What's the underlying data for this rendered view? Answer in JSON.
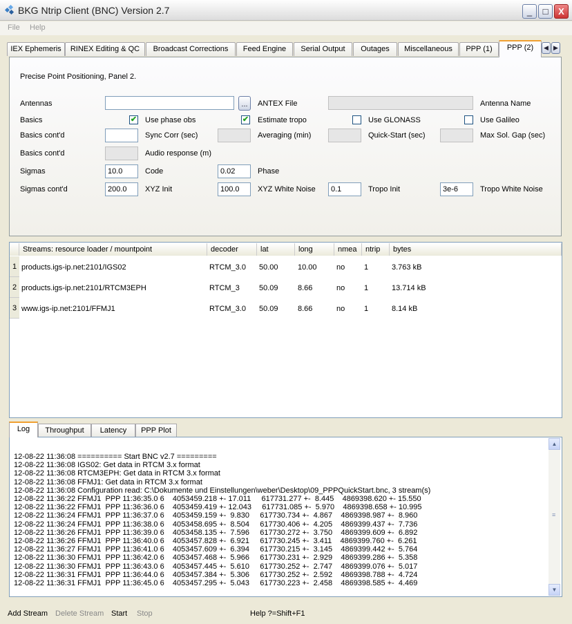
{
  "window": {
    "title": "BKG Ntrip Client (BNC) Version 2.7",
    "minimize": "_",
    "maximize": "□",
    "close": "X"
  },
  "menu": [
    "File",
    "Help"
  ],
  "tabs": [
    "IEX Ephemeris",
    "RINEX Editing & QC",
    "Broadcast Corrections",
    "Feed Engine",
    "Serial Output",
    "Outages",
    "Miscellaneous",
    "PPP (1)",
    "PPP (2)"
  ],
  "active_tab": "PPP (2)",
  "tab_scroll": {
    "left": "◀",
    "right": "▶"
  },
  "panel": {
    "heading": "Precise Point Positioning, Panel 2.",
    "antennas": {
      "label": "Antennas",
      "value": "",
      "browse": "...",
      "antex_label": "ANTEX File",
      "antex_value": "",
      "antenna_name_label": "Antenna Name"
    },
    "basics": {
      "label": "Basics",
      "use_phase_obs": {
        "label": "Use phase obs",
        "checked": true
      },
      "estimate_tropo": {
        "label": "Estimate tropo",
        "checked": true
      },
      "use_glonass": {
        "label": "Use GLONASS",
        "checked": false
      },
      "use_galileo": {
        "label": "Use Galileo",
        "checked": false
      },
      "check_mark": "✔"
    },
    "basics2": {
      "label": "Basics cont'd",
      "sync_value": "",
      "sync_label": "Sync Corr (sec)",
      "averaging_value": "",
      "averaging_label": "Averaging (min)",
      "quickstart_value": "",
      "quickstart_label": "Quick-Start (sec)",
      "maxgap_value": "",
      "maxgap_label": "Max Sol. Gap (sec)"
    },
    "basics3": {
      "label": "Basics cont'd",
      "audio_value": "",
      "audio_label": "Audio response (m)"
    },
    "sigmas": {
      "label": "Sigmas",
      "code_value": "10.0",
      "code_label": "Code",
      "phase_value": "0.02",
      "phase_label": "Phase"
    },
    "sigmas2": {
      "label": "Sigmas cont'd",
      "xyz_init_value": "200.0",
      "xyz_init_label": "XYZ Init",
      "xyz_wn_value": "100.0",
      "xyz_wn_label": "XYZ White Noise",
      "tropo_init_value": "0.1",
      "tropo_init_label": "Tropo Init",
      "tropo_wn_value": "3e-6",
      "tropo_wn_label": "Tropo White Noise"
    }
  },
  "streams": {
    "columns": [
      "Streams:   resource loader / mountpoint",
      "decoder",
      "lat",
      "long",
      "nmea",
      "ntrip",
      "bytes"
    ],
    "rows": [
      {
        "n": "1",
        "mount": "products.igs-ip.net:2101/IGS02",
        "decoder": "RTCM_3.0",
        "lat": "50.00",
        "long": "10.00",
        "nmea": "no",
        "ntrip": "1",
        "bytes": "3.763 kB"
      },
      {
        "n": "2",
        "mount": "products.igs-ip.net:2101/RTCM3EPH",
        "decoder": "RTCM_3",
        "lat": "50.09",
        "long": "8.66",
        "nmea": "no",
        "ntrip": "1",
        "bytes": "13.714 kB"
      },
      {
        "n": "3",
        "mount": "www.igs-ip.net:2101/FFMJ1",
        "decoder": "RTCM_3.0",
        "lat": "50.09",
        "long": "8.66",
        "nmea": "no",
        "ntrip": "1",
        "bytes": "8.14 kB"
      }
    ]
  },
  "bottom_tabs": [
    "Log",
    "Throughput",
    "Latency",
    "PPP Plot"
  ],
  "log": [
    "12-08-22 11:36:08 ========== Start BNC v2.7 =========",
    "12-08-22 11:36:08 IGS02: Get data in RTCM 3.x format",
    "12-08-22 11:36:08 RTCM3EPH: Get data in RTCM 3.x format",
    "12-08-22 11:36:08 FFMJ1: Get data in RTCM 3.x format",
    "12-08-22 11:36:08 Configuration read: C:\\Dokumente und Einstellungen\\weber\\Desktop\\09_PPPQuickStart.bnc, 3 stream(s)",
    "12-08-22 11:36:22 FFMJ1  PPP 11:36:35.0 6    4053459.218 +- 17.011     617731.277 +-  8.445    4869398.620 +- 15.550",
    "12-08-22 11:36:22 FFMJ1  PPP 11:36:36.0 6    4053459.419 +- 12.043     617731.085 +-  5.970    4869398.658 +- 10.995",
    "12-08-22 11:36:24 FFMJ1  PPP 11:36:37.0 6    4053459.159 +-  9.830     617730.734 +-  4.867    4869398.987 +-  8.960",
    "12-08-22 11:36:24 FFMJ1  PPP 11:36:38.0 6    4053458.695 +-  8.504     617730.406 +-  4.205    4869399.437 +-  7.736",
    "12-08-22 11:36:26 FFMJ1  PPP 11:36:39.0 6    4053458.135 +-  7.596     617730.272 +-  3.750    4869399.609 +-  6.892",
    "12-08-22 11:36:26 FFMJ1  PPP 11:36:40.0 6    4053457.828 +-  6.921     617730.245 +-  3.411    4869399.760 +-  6.261",
    "12-08-22 11:36:27 FFMJ1  PPP 11:36:41.0 6    4053457.609 +-  6.394     617730.215 +-  3.145    4869399.442 +-  5.764",
    "12-08-22 11:36:30 FFMJ1  PPP 11:36:42.0 6    4053457.468 +-  5.966     617730.231 +-  2.929    4869399.286 +-  5.358",
    "12-08-22 11:36:30 FFMJ1  PPP 11:36:43.0 6    4053457.445 +-  5.610     617730.252 +-  2.747    4869399.076 +-  5.017",
    "12-08-22 11:36:31 FFMJ1  PPP 11:36:44.0 6    4053457.384 +-  5.306     617730.252 +-  2.592    4869398.788 +-  4.724",
    "12-08-22 11:36:31 FFMJ1  PPP 11:36:45.0 6    4053457.295 +-  5.043     617730.223 +-  2.458    4869398.585 +-  4.469"
  ],
  "scrollbar": {
    "up": "▲",
    "down": "▼",
    "grip": "≡"
  },
  "bottom_bar": {
    "add_stream": "Add Stream",
    "delete_stream": "Delete Stream",
    "start": "Start",
    "stop": "Stop",
    "help": "Help ?=Shift+F1"
  }
}
